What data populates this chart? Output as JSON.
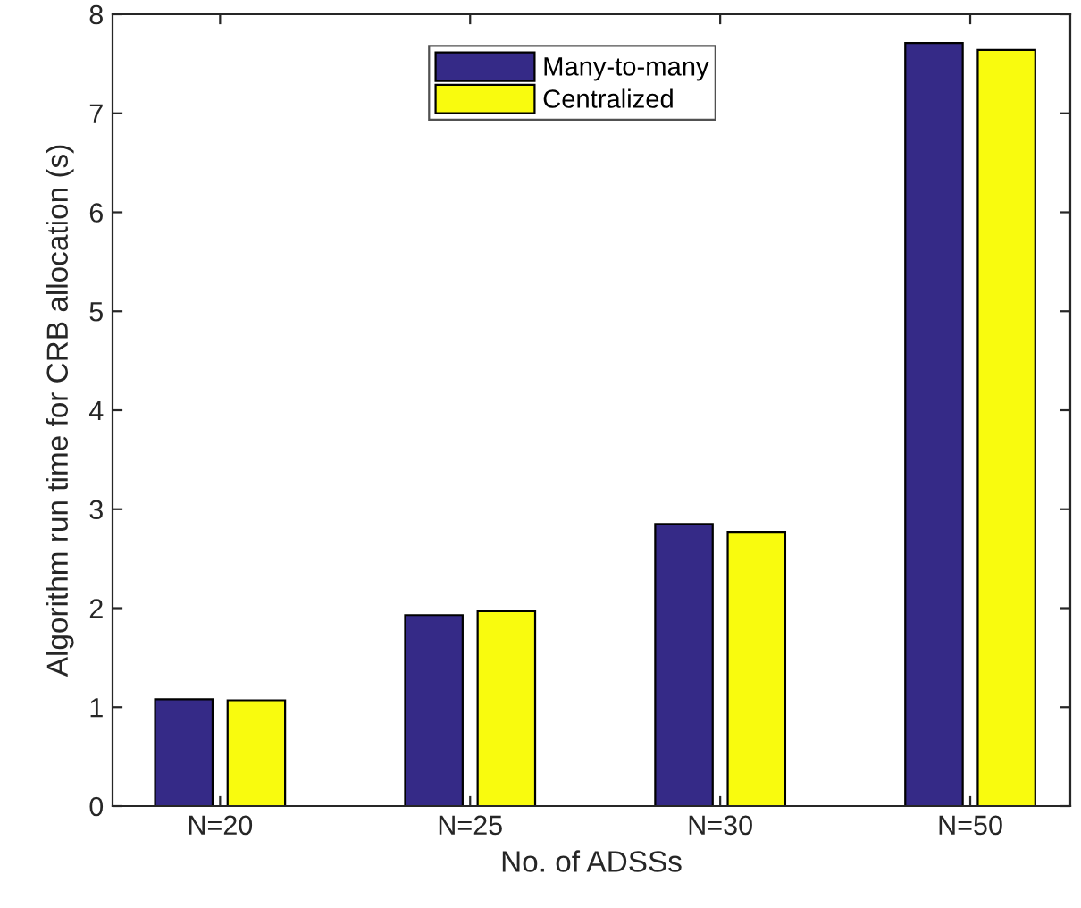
{
  "chart_data": {
    "type": "bar",
    "xlabel": "No. of ADSSs",
    "ylabel": "Algorithm run time for CRB allocation (s)",
    "categories": [
      "N=20",
      "N=25",
      "N=30",
      "N=50"
    ],
    "series": [
      {
        "name": "Many-to-many",
        "color": "#352a87",
        "values": [
          1.08,
          1.93,
          2.85,
          7.71
        ]
      },
      {
        "name": "Centralized",
        "color": "#f9fb0e",
        "values": [
          1.07,
          1.97,
          2.77,
          7.64
        ]
      }
    ],
    "ylim": [
      0,
      8
    ],
    "yticks": [
      0,
      1,
      2,
      3,
      4,
      5,
      6,
      7,
      8
    ],
    "legend": "top"
  }
}
